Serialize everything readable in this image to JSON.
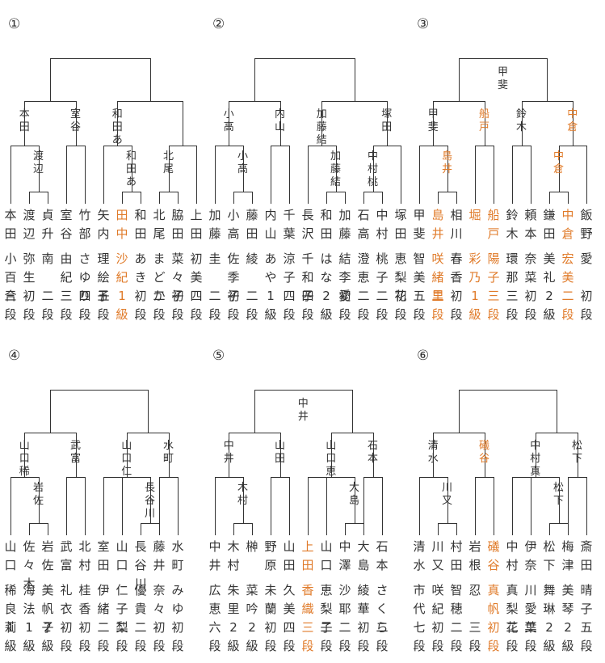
{
  "brackets": [
    {
      "number": "①",
      "final": {
        "winner": "",
        "highlight": false
      },
      "semis": [
        {
          "label": "",
          "highlight": false
        },
        {
          "label": "",
          "highlight": false
        }
      ],
      "quarters": [
        {
          "label": "本田",
          "highlight": false
        },
        {
          "label": "室谷",
          "highlight": false
        },
        {
          "label": "和田あ",
          "highlight": false
        },
        {
          "label": "",
          "highlight": false
        }
      ],
      "r1": [
        {
          "label": "渡辺",
          "highlight": false
        },
        {
          "label": "和田あ",
          "highlight": false
        },
        {
          "label": "北尾",
          "highlight": false
        }
      ],
      "players": [
        {
          "surname": "本田",
          "given": "小百合",
          "rank": "三段",
          "highlight": false
        },
        {
          "surname": "渡辺",
          "given": "弥生",
          "rank": "初段",
          "highlight": false
        },
        {
          "surname": "貞升",
          "given": "南",
          "rank": "二段",
          "highlight": false
        },
        {
          "surname": "室谷",
          "given": "由紀",
          "rank": "三段",
          "highlight": false
        },
        {
          "surname": "竹部",
          "given": "さゆり",
          "rank": "四段",
          "highlight": false
        },
        {
          "surname": "矢内",
          "given": "理絵子",
          "rank": "五段",
          "highlight": false
        },
        {
          "surname": "田中",
          "given": "沙紀",
          "rank": "1級",
          "highlight": true
        },
        {
          "surname": "和田",
          "given": "あき",
          "rank": "初段",
          "highlight": false
        },
        {
          "surname": "北尾",
          "given": "まどか",
          "rank": "二段",
          "highlight": false
        },
        {
          "surname": "脇田",
          "given": "菜々子",
          "rank": "初段",
          "highlight": false
        },
        {
          "surname": "上田",
          "given": "初美",
          "rank": "四段",
          "highlight": false
        }
      ]
    },
    {
      "number": "②",
      "final": {
        "winner": "",
        "highlight": false
      },
      "semis": [
        {
          "label": "",
          "highlight": false
        },
        {
          "label": "",
          "highlight": false
        }
      ],
      "quarters": [
        {
          "label": "小高",
          "highlight": false
        },
        {
          "label": "内山",
          "highlight": false
        },
        {
          "label": "加藤結",
          "highlight": false
        },
        {
          "label": "塚田",
          "highlight": false
        }
      ],
      "r1": [
        {
          "label": "小高",
          "highlight": false
        },
        {
          "label": "加藤結",
          "highlight": false
        },
        {
          "label": "中村桃",
          "highlight": false
        }
      ],
      "players": [
        {
          "surname": "加藤",
          "given": "圭",
          "rank": "二段",
          "highlight": false
        },
        {
          "surname": "小高",
          "given": "佐季子",
          "rank": "初段",
          "highlight": false
        },
        {
          "surname": "藤田",
          "given": "綾",
          "rank": "二段",
          "highlight": false
        },
        {
          "surname": "内山",
          "given": "あや",
          "rank": "1級",
          "highlight": false
        },
        {
          "surname": "千葉",
          "given": "涼子",
          "rank": "四段",
          "highlight": false
        },
        {
          "surname": "長沢",
          "given": "千和子",
          "rank": "四段",
          "highlight": false
        },
        {
          "surname": "和田",
          "given": "はな",
          "rank": "2級",
          "highlight": false
        },
        {
          "surname": "加藤",
          "given": "結李愛",
          "rank": "初段",
          "highlight": false
        },
        {
          "surname": "石高",
          "given": "澄恵",
          "rank": "二段",
          "highlight": false
        },
        {
          "surname": "中村",
          "given": "桃子",
          "rank": "二段",
          "highlight": false
        },
        {
          "surname": "塚田",
          "given": "恵梨花",
          "rank": "初段",
          "highlight": false
        }
      ]
    },
    {
      "number": "③",
      "final": {
        "winner": "甲斐",
        "highlight": false
      },
      "semis": [
        {
          "label": "",
          "highlight": false
        },
        {
          "label": "",
          "highlight": false
        }
      ],
      "quarters": [
        {
          "label": "甲斐",
          "highlight": false
        },
        {
          "label": "船戸",
          "highlight": true
        },
        {
          "label": "鈴木",
          "highlight": false
        },
        {
          "label": "中倉",
          "highlight": true
        }
      ],
      "r1": [
        {
          "label": "島井",
          "highlight": true
        },
        {
          "label": "中倉",
          "highlight": true
        },
        {
          "label": "",
          "highlight": false
        }
      ],
      "players": [
        {
          "surname": "甲斐",
          "given": "智美",
          "rank": "五段",
          "highlight": false
        },
        {
          "surname": "島井",
          "given": "咲緒里",
          "rank": "二段",
          "highlight": true
        },
        {
          "surname": "相川",
          "given": "春香",
          "rank": "初段",
          "highlight": false
        },
        {
          "surname": "堀",
          "given": "彩乃",
          "rank": "1級",
          "highlight": true
        },
        {
          "surname": "船戸",
          "given": "陽子",
          "rank": "三段",
          "highlight": true
        },
        {
          "surname": "鈴木",
          "given": "環那",
          "rank": "三段",
          "highlight": false
        },
        {
          "surname": "頼本",
          "given": "奈菜",
          "rank": "初段",
          "highlight": false
        },
        {
          "surname": "鎌田",
          "given": "美礼",
          "rank": "2級",
          "highlight": false
        },
        {
          "surname": "中倉",
          "given": "宏美",
          "rank": "二段",
          "highlight": true
        },
        {
          "surname": "飯野",
          "given": "愛",
          "rank": "初段",
          "highlight": false
        }
      ]
    },
    {
      "number": "④",
      "final": {
        "winner": "",
        "highlight": false
      },
      "semis": [
        {
          "label": "",
          "highlight": false
        },
        {
          "label": "",
          "highlight": false
        }
      ],
      "quarters": [
        {
          "label": "山口稀",
          "highlight": false
        },
        {
          "label": "武富",
          "highlight": false
        },
        {
          "label": "山口仁",
          "highlight": false
        },
        {
          "label": "水町",
          "highlight": false
        }
      ],
      "r1": [
        {
          "label": "岩佐",
          "highlight": false
        },
        {
          "label": "長谷川",
          "highlight": false
        },
        {
          "label": "",
          "highlight": false
        }
      ],
      "players": [
        {
          "surname": "山口",
          "given": "稀良莉",
          "rank": "1級",
          "highlight": false
        },
        {
          "surname": "佐々木",
          "given": "海法",
          "rank": "1級",
          "highlight": false
        },
        {
          "surname": "岩佐",
          "given": "美帆子",
          "rank": "2級",
          "highlight": false
        },
        {
          "surname": "武富",
          "given": "礼衣",
          "rank": "初段",
          "highlight": false
        },
        {
          "surname": "北村",
          "given": "桂香",
          "rank": "初段",
          "highlight": false
        },
        {
          "surname": "室田",
          "given": "伊緒",
          "rank": "二段",
          "highlight": false
        },
        {
          "surname": "山口",
          "given": "仁子梨",
          "rank": "二段",
          "highlight": false
        },
        {
          "surname": "長谷川",
          "given": "優貴",
          "rank": "二段",
          "highlight": false
        },
        {
          "surname": "藤井",
          "given": "奈々",
          "rank": "初段",
          "highlight": false
        },
        {
          "surname": "水町",
          "given": "みゆ",
          "rank": "初段",
          "highlight": false
        }
      ]
    },
    {
      "number": "⑤",
      "final": {
        "winner": "中井",
        "highlight": false
      },
      "semis": [
        {
          "label": "",
          "highlight": false
        },
        {
          "label": "",
          "highlight": false
        }
      ],
      "quarters": [
        {
          "label": "中井",
          "highlight": false
        },
        {
          "label": "山田",
          "highlight": false
        },
        {
          "label": "山口恵",
          "highlight": false
        },
        {
          "label": "石本",
          "highlight": false
        }
      ],
      "r1": [
        {
          "label": "木村",
          "highlight": false
        },
        {
          "label": "大島",
          "highlight": false
        },
        {
          "label": "",
          "highlight": false
        }
      ],
      "players": [
        {
          "surname": "中井",
          "given": "広恵",
          "rank": "六段",
          "highlight": false
        },
        {
          "surname": "木村",
          "given": "朱里",
          "rank": "2級",
          "highlight": false
        },
        {
          "surname": "榊",
          "given": "菜吟",
          "rank": "2級",
          "highlight": false
        },
        {
          "surname": "野原",
          "given": "未蘭",
          "rank": "初段",
          "highlight": false
        },
        {
          "surname": "山田",
          "given": "久美",
          "rank": "四段",
          "highlight": false
        },
        {
          "surname": "上田",
          "given": "香織",
          "rank": "三段",
          "highlight": true
        },
        {
          "surname": "山口",
          "given": "恵梨子",
          "rank": "二段",
          "highlight": false
        },
        {
          "surname": "中澤",
          "given": "沙耶",
          "rank": "二段",
          "highlight": false
        },
        {
          "surname": "大島",
          "given": "綾華",
          "rank": "初段",
          "highlight": false
        },
        {
          "surname": "石本",
          "given": "さくら",
          "rank": "二段",
          "highlight": false
        }
      ]
    },
    {
      "number": "⑥",
      "final": {
        "winner": "",
        "highlight": false
      },
      "semis": [
        {
          "label": "",
          "highlight": false
        },
        {
          "label": "",
          "highlight": false
        }
      ],
      "quarters": [
        {
          "label": "清水",
          "highlight": false
        },
        {
          "label": "礒谷",
          "highlight": true
        },
        {
          "label": "中村真",
          "highlight": false
        },
        {
          "label": "松下",
          "highlight": false
        }
      ],
      "r1": [
        {
          "label": "川又",
          "highlight": false
        },
        {
          "label": "松下",
          "highlight": false
        },
        {
          "label": "",
          "highlight": false
        }
      ],
      "players": [
        {
          "surname": "清水",
          "given": "市代",
          "rank": "七段",
          "highlight": false
        },
        {
          "surname": "川又",
          "given": "咲紀",
          "rank": "初段",
          "highlight": false
        },
        {
          "surname": "村田",
          "given": "智穂",
          "rank": "二段",
          "highlight": false
        },
        {
          "surname": "岩根",
          "given": "忍",
          "rank": "三段",
          "highlight": false
        },
        {
          "surname": "礒谷",
          "given": "真帆",
          "rank": "初段",
          "highlight": true
        },
        {
          "surname": "中村",
          "given": "真梨花",
          "rank": "二段",
          "highlight": false
        },
        {
          "surname": "伊奈",
          "given": "川愛葉",
          "rank": "二段",
          "highlight": false
        },
        {
          "surname": "松下",
          "given": "舞琳",
          "rank": "2級",
          "highlight": false
        },
        {
          "surname": "梅津",
          "given": "美琴",
          "rank": "2級",
          "highlight": false
        },
        {
          "surname": "斎田",
          "given": "晴子",
          "rank": "五段",
          "highlight": false
        }
      ]
    }
  ],
  "colors": {
    "line": "#333333",
    "text": "#333333",
    "highlight": "#e07b2a"
  }
}
